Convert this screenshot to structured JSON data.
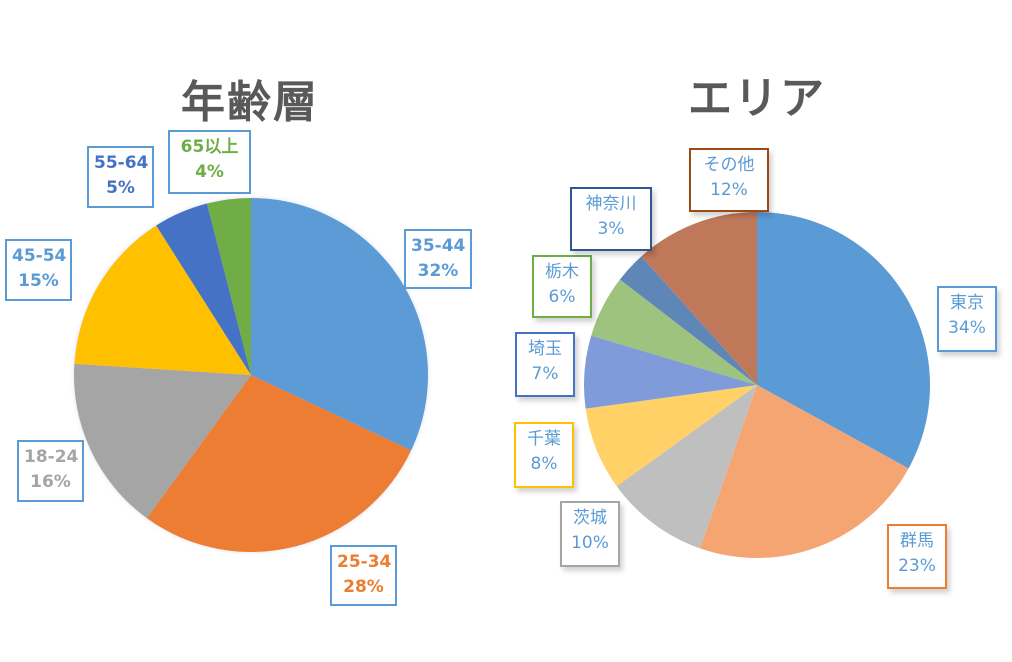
{
  "chart_data": [
    {
      "type": "pie",
      "title": "年齢層",
      "categories": [
        "35-44",
        "25-34",
        "18-24",
        "45-54",
        "55-64",
        "65以上"
      ],
      "values": [
        32,
        28,
        16,
        15,
        5,
        4
      ],
      "unit": "%",
      "colors": [
        "#5b9bd5",
        "#ed7d31",
        "#a5a5a5",
        "#ffc000",
        "#4472c4",
        "#70ad47"
      ],
      "label_colors": [
        "#5b9bd5",
        "#ed7d31",
        "#a5a5a5",
        "#5b9bd5",
        "#4472c4",
        "#70ad47"
      ],
      "label_border_color": "#5b9bd5",
      "start_angle_deg": 0,
      "direction": "clockwise",
      "legend": "none",
      "data_labels": "category + percentage"
    },
    {
      "type": "pie",
      "title": "エリア",
      "categories": [
        "東京",
        "群馬",
        "茨城",
        "千葉",
        "埼玉",
        "栃木",
        "神奈川",
        "その他"
      ],
      "values": [
        34,
        23,
        10,
        8,
        7,
        6,
        3,
        12
      ],
      "unit": "%",
      "colors": [
        "#5b9bd5",
        "#f4a572",
        "#bfbfbf",
        "#ffd166",
        "#7f9bd9",
        "#9dc37e",
        "#5e87b8",
        "#c0785a"
      ],
      "label_text_color": "#5b9bd5",
      "label_border_colors": [
        "#5b9bd5",
        "#ed7d31",
        "#a5a5a5",
        "#ffc000",
        "#4472c4",
        "#70ad47",
        "#2f5597",
        "#9c4a14"
      ],
      "start_angle_deg": 0,
      "direction": "clockwise",
      "legend": "none",
      "data_labels": "category + percentage"
    }
  ],
  "charts": {
    "age": {
      "title": "年齢層",
      "labels": [
        {
          "name": "35-44",
          "pct": "32%"
        },
        {
          "name": "25-34",
          "pct": "28%"
        },
        {
          "name": "18-24",
          "pct": "16%"
        },
        {
          "name": "45-54",
          "pct": "15%"
        },
        {
          "name": "55-64",
          "pct": "5%"
        },
        {
          "name": "65以上",
          "pct": "4%"
        }
      ]
    },
    "area": {
      "title": "エリア",
      "labels": [
        {
          "name": "東京",
          "pct": "34%"
        },
        {
          "name": "群馬",
          "pct": "23%"
        },
        {
          "name": "茨城",
          "pct": "10%"
        },
        {
          "name": "千葉",
          "pct": "8%"
        },
        {
          "name": "埼玉",
          "pct": "7%"
        },
        {
          "name": "栃木",
          "pct": "6%"
        },
        {
          "name": "神奈川",
          "pct": "3%"
        },
        {
          "name": "その他",
          "pct": "12%"
        }
      ]
    }
  }
}
